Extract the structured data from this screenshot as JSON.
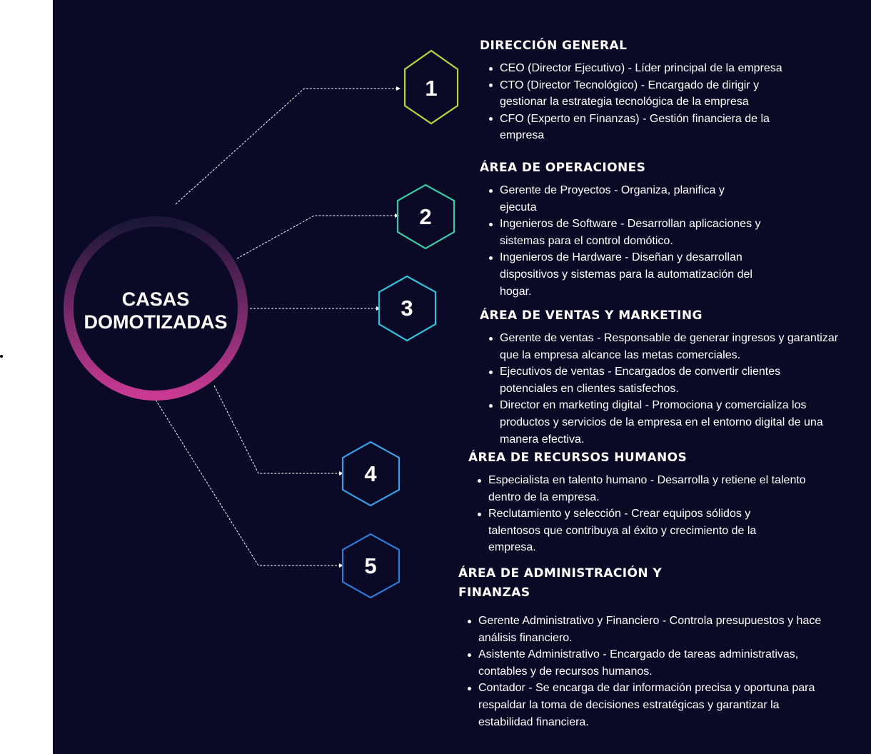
{
  "diagram": {
    "center": {
      "line1": "CASAS",
      "line2": "DOMOTIZADAS"
    },
    "nodes": [
      {
        "number": "1",
        "color": "#b9d33e"
      },
      {
        "number": "2",
        "color": "#3cc8a6"
      },
      {
        "number": "3",
        "color": "#34c0dc"
      },
      {
        "number": "4",
        "color": "#3a9ee6"
      },
      {
        "number": "5",
        "color": "#2f79d8"
      }
    ],
    "ring_gradient": {
      "top": "#1a1737",
      "bottom": "#c93a94"
    }
  },
  "sections": [
    {
      "title": "DIRECCIÓN GENERAL",
      "items": [
        "CEO (Director Ejecutivo) - Líder principal de la empresa",
        "CTO (Director Tecnológico) - Encargado de dirigir y gestionar la estrategia tecnológica de la empresa",
        "CFO (Experto en Finanzas) - Gestión financiera de la empresa"
      ]
    },
    {
      "title": "ÁREA DE OPERACIONES",
      "items": [
        "Gerente de Proyectos - Organiza, planifica y ejecuta",
        "Ingenieros de Software - Desarrollan aplicaciones y sistemas para el control domótico.",
        "Ingenieros de Hardware - Diseñan y desarrollan dispositivos y sistemas para la automatización del hogar."
      ]
    },
    {
      "title": "ÁREA DE VENTAS Y MARKETING",
      "items": [
        "Gerente de ventas - Responsable de generar ingresos y garantizar que la empresa alcance las metas comerciales.",
        "Ejecutivos de ventas -  Encargados de convertir clientes potenciales en clientes satisfechos.",
        "Director en marketing digital - Promociona y comercializa los productos y servicios de la empresa en el entorno digital de una manera efectiva."
      ]
    },
    {
      "title": "ÁREA DE RECURSOS HUMANOS",
      "items": [
        "Especialista en talento humano - Desarrolla y retiene el talento dentro de la empresa.",
        "Reclutamiento y selección - Crear equipos sólidos y talentosos que contribuya al éxito y crecimiento de la empresa."
      ]
    },
    {
      "title": "ÁREA DE ADMINISTRACIÓN Y FINANZAS",
      "items": [
        "Gerente Administrativo y Financiero - Controla presupuestos y hace análisis financiero.",
        "Asistente Administrativo - Encargado de tareas administrativas, contables y de recursos humanos.",
        "Contador - Se encarga de dar información precisa y oportuna para respaldar la toma de decisiones estratégicas y garantizar la estabilidad financiera."
      ]
    }
  ]
}
